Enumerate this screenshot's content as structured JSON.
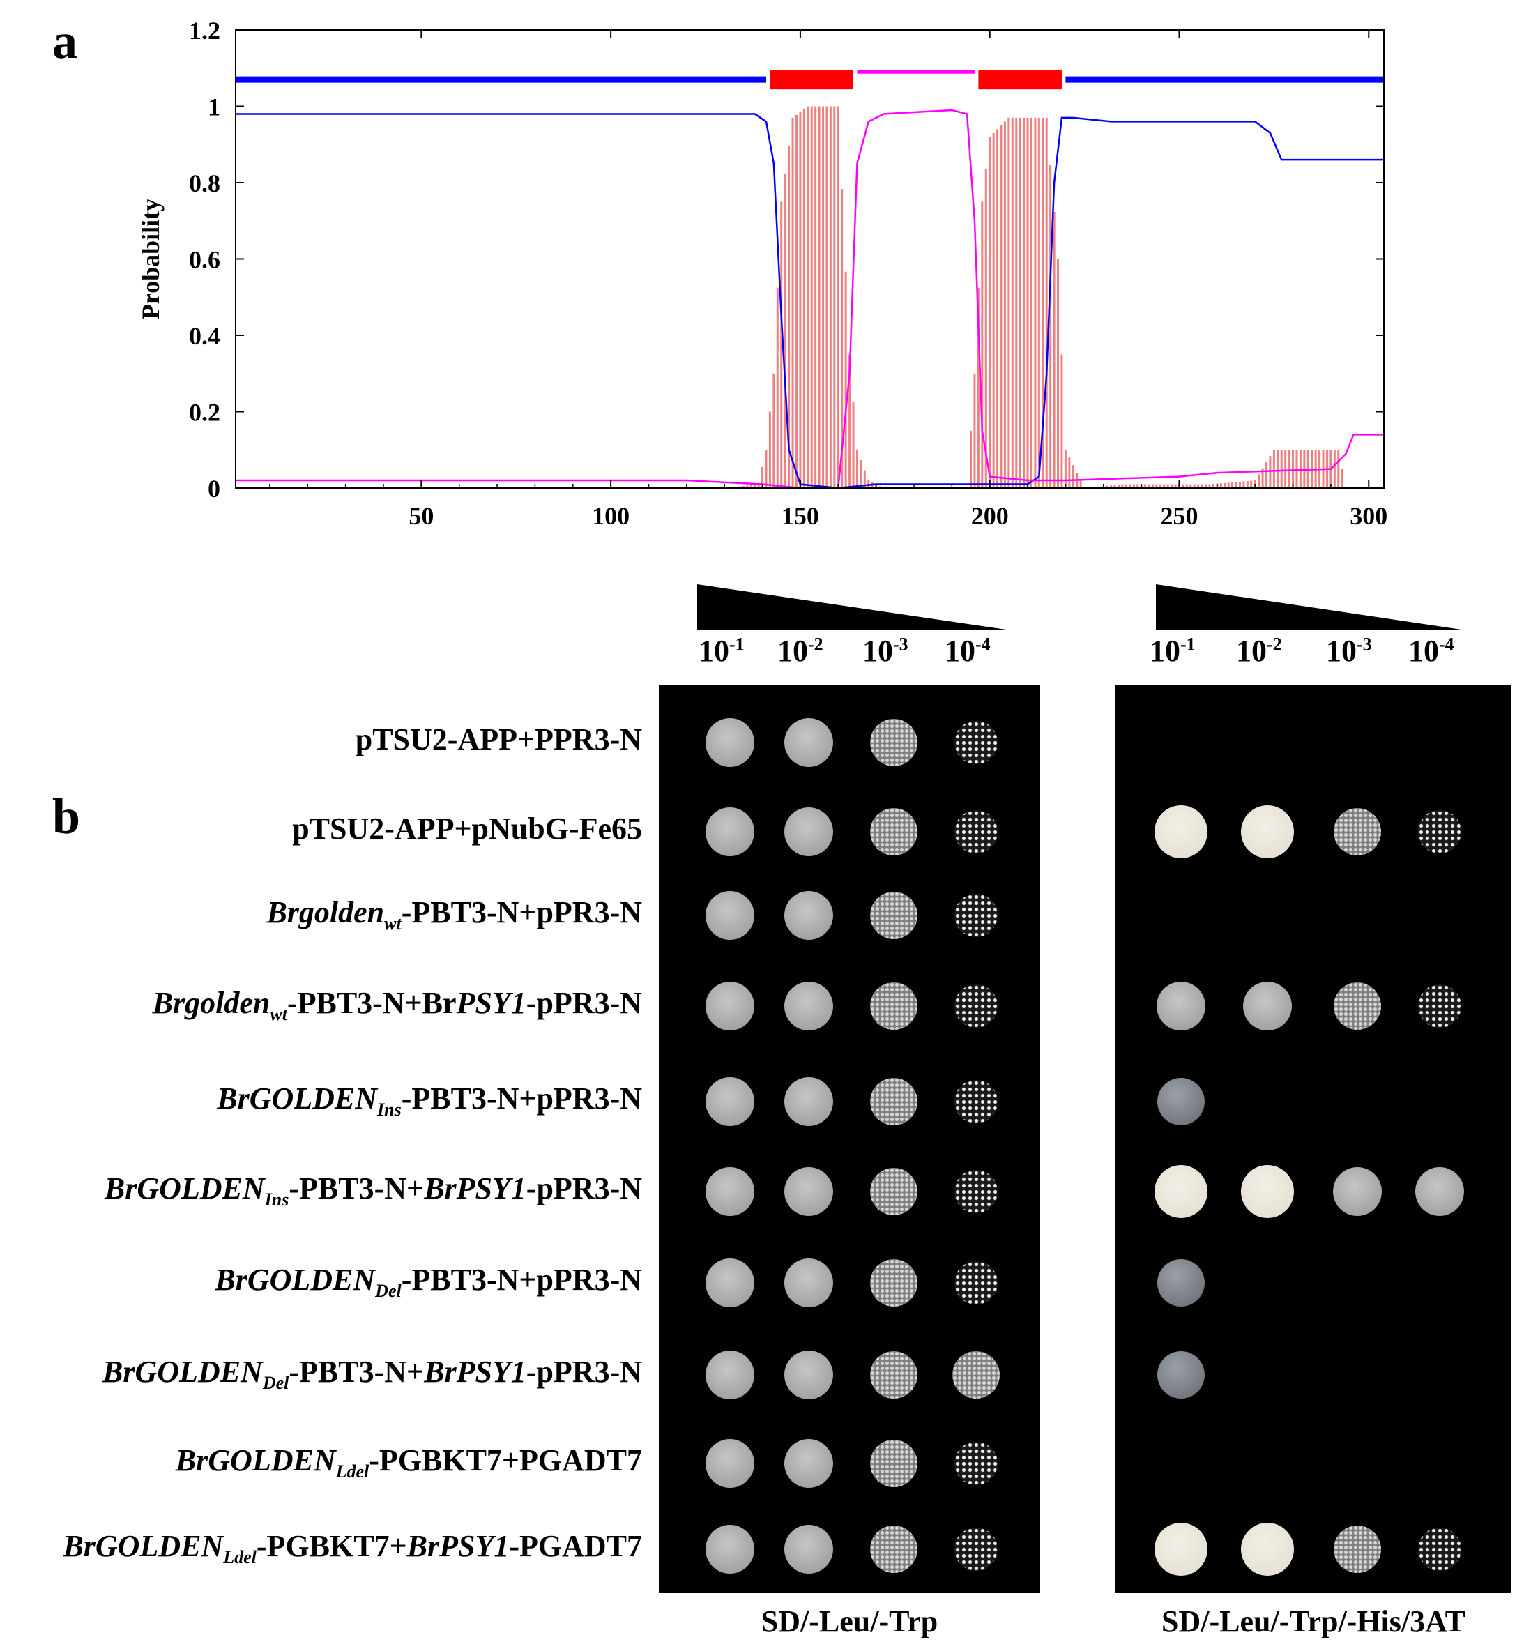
{
  "panel_a": {
    "letter": "a"
  },
  "panel_b": {
    "letter": "b"
  },
  "chart_data": {
    "type": "line",
    "ylabel": "Probability",
    "xlabel": "",
    "xlim": [
      1,
      304
    ],
    "ylim": [
      0,
      1.2
    ],
    "x_ticks": [
      50,
      100,
      150,
      200,
      250,
      300
    ],
    "y_ticks": [
      "0",
      "0.2",
      "0.4",
      "0.6",
      "0.8",
      "1",
      "1.2"
    ],
    "colors": {
      "transmembrane": "#ff0000",
      "inside": "#0000ff",
      "outside": "#ff00ff",
      "tm_bars": "#f08080"
    },
    "topology": [
      {
        "type": "inside",
        "start": 1,
        "end": 141
      },
      {
        "type": "transmembrane",
        "start": 142,
        "end": 164
      },
      {
        "type": "outside",
        "start": 165,
        "end": 196
      },
      {
        "type": "transmembrane",
        "start": 197,
        "end": 219
      },
      {
        "type": "inside",
        "start": 220,
        "end": 304
      }
    ],
    "series": [
      {
        "color": "#0000ff",
        "x": [
          1,
          138,
          141,
          143,
          145,
          147,
          150,
          160,
          170,
          190,
          210,
          213,
          215,
          217,
          219,
          222,
          232,
          270,
          274,
          277,
          304
        ],
        "y": [
          0.98,
          0.98,
          0.96,
          0.85,
          0.45,
          0.1,
          0.01,
          0.0,
          0.01,
          0.01,
          0.01,
          0.03,
          0.3,
          0.8,
          0.97,
          0.97,
          0.96,
          0.96,
          0.93,
          0.86,
          0.86
        ]
      },
      {
        "color": "#ff00ff",
        "x": [
          1,
          120,
          140,
          150,
          160,
          163,
          165,
          168,
          172,
          190,
          194,
          196,
          198,
          200,
          210,
          220,
          250,
          260,
          290,
          294,
          296,
          304
        ],
        "y": [
          0.02,
          0.02,
          0.01,
          0.0,
          0.0,
          0.3,
          0.85,
          0.96,
          0.98,
          0.99,
          0.98,
          0.7,
          0.15,
          0.03,
          0.02,
          0.02,
          0.03,
          0.04,
          0.05,
          0.09,
          0.14,
          0.14
        ]
      },
      {
        "color": "#f08080",
        "x": [
          130,
          139,
          141,
          143,
          145,
          148,
          152,
          160,
          163,
          165,
          168,
          172,
          194,
          196,
          198,
          200,
          205,
          215,
          218,
          220,
          225,
          235,
          258,
          270,
          275,
          292,
          294,
          304
        ],
        "y": [
          0,
          0.01,
          0.1,
          0.3,
          0.75,
          0.97,
          1.0,
          1.0,
          0.35,
          0.1,
          0.02,
          0,
          0,
          0.3,
          0.75,
          0.92,
          0.97,
          0.97,
          0.6,
          0.1,
          0,
          0.01,
          0.01,
          0.02,
          0.1,
          0.1,
          0,
          0
        ]
      }
    ]
  },
  "dilutions": [
    "10",
    "10",
    "10",
    "10"
  ],
  "dilution_exponents": [
    "-1",
    "-2",
    "-3",
    "-4"
  ],
  "media": {
    "left": "SD/-Leu/-Trp",
    "right": "SD/-Leu/-Trp/-His/3AT"
  },
  "rows": [
    {
      "parts": [
        {
          "t": "pTSU2-APP+PPR3-N"
        }
      ],
      "left": [
        3,
        3,
        2,
        1
      ],
      "right": [
        0,
        0,
        0,
        0
      ]
    },
    {
      "parts": [
        {
          "t": "pTSU2-APP+pNubG-Fe65"
        }
      ],
      "left": [
        3,
        3,
        2,
        1
      ],
      "right": [
        4,
        4,
        2,
        1
      ]
    },
    {
      "parts": [
        {
          "t": "Brgolden",
          "i": true
        },
        {
          "t": "wt",
          "sub": true
        },
        {
          "t": "-PBT3-N+pPR3-N"
        }
      ],
      "left": [
        3,
        3,
        2,
        1
      ],
      "right": [
        0,
        0,
        0,
        0
      ]
    },
    {
      "parts": [
        {
          "t": "Brgolden",
          "i": true
        },
        {
          "t": "wt",
          "sub": true
        },
        {
          "t": "-PBT3-N+Br"
        },
        {
          "t": "PSY1",
          "i": true
        },
        {
          "t": "-pPR3-N"
        }
      ],
      "left": [
        3,
        3,
        2,
        1
      ],
      "right": [
        3,
        3,
        2,
        1
      ]
    },
    {
      "parts": [
        {
          "t": "BrGOLDEN",
          "i": true
        },
        {
          "t": "Ins",
          "sub": true
        },
        {
          "t": "-PBT3-N+pPR3-N"
        }
      ],
      "left": [
        3,
        3,
        2,
        1
      ],
      "right": [
        5,
        0,
        0,
        0
      ]
    },
    {
      "parts": [
        {
          "t": "BrGOLDEN",
          "i": true
        },
        {
          "t": "Ins",
          "sub": true
        },
        {
          "t": "-PBT3-N+"
        },
        {
          "t": "BrPSY1",
          "i": true
        },
        {
          "t": "-pPR3-N"
        }
      ],
      "left": [
        3,
        3,
        2,
        1
      ],
      "right": [
        4,
        4,
        3,
        3
      ]
    },
    {
      "parts": [
        {
          "t": "BrGOLDEN",
          "i": true
        },
        {
          "t": "Del",
          "sub": true
        },
        {
          "t": "-PBT3-N+pPR3-N"
        }
      ],
      "left": [
        3,
        3,
        2,
        1
      ],
      "right": [
        5,
        0,
        0,
        0
      ]
    },
    {
      "parts": [
        {
          "t": "BrGOLDEN",
          "i": true
        },
        {
          "t": "Del",
          "sub": true
        },
        {
          "t": "-PBT3-N+"
        },
        {
          "t": "BrPSY1",
          "i": true
        },
        {
          "t": "-pPR3-N"
        }
      ],
      "left": [
        3,
        3,
        2,
        2
      ],
      "right": [
        5,
        0,
        0,
        0
      ]
    },
    {
      "parts": [
        {
          "t": "BrGOLDEN",
          "i": true
        },
        {
          "t": "Ldel",
          "sub": true
        },
        {
          "t": "-PGBKT7+PGADT7"
        }
      ],
      "left": [
        3,
        3,
        2,
        1
      ],
      "right": [
        0,
        0,
        0,
        0
      ]
    },
    {
      "parts": [
        {
          "t": "BrGOLDEN",
          "i": true
        },
        {
          "t": "Ldel",
          "sub": true
        },
        {
          "t": "-PGBKT7+"
        },
        {
          "t": "BrPSY1",
          "i": true
        },
        {
          "t": "-PGADT7"
        }
      ],
      "left": [
        3,
        3,
        2,
        1
      ],
      "right": [
        4,
        4,
        2,
        1
      ]
    }
  ]
}
